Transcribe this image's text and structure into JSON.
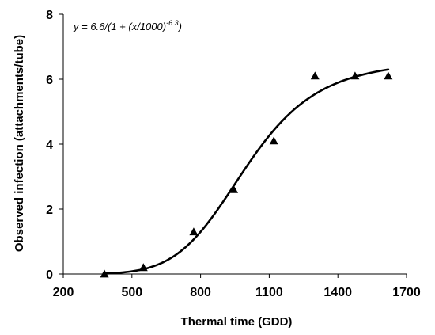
{
  "chart_data": {
    "type": "scatter",
    "xlabel": "Thermal time (GDD)",
    "ylabel": "Observed infection (attachments/tube)",
    "xlim": [
      200,
      1700
    ],
    "ylim": [
      0,
      8
    ],
    "x_ticks": [
      200,
      500,
      800,
      1100,
      1400,
      1700
    ],
    "y_ticks": [
      0,
      2,
      4,
      6,
      8
    ],
    "grid": false,
    "legend": "none",
    "marker": "triangle",
    "color": "#000000",
    "equation": {
      "prefix": "y = 6.6/(1 + (x/1000)",
      "exponent": "-6.3",
      "suffix": ")"
    },
    "series": [
      {
        "points": [
          {
            "x": 380,
            "y": 0.0
          },
          {
            "x": 550,
            "y": 0.2
          },
          {
            "x": 770,
            "y": 1.3
          },
          {
            "x": 945,
            "y": 2.6
          },
          {
            "x": 1120,
            "y": 4.1
          },
          {
            "x": 1300,
            "y": 6.1
          },
          {
            "x": 1475,
            "y": 6.1
          },
          {
            "x": 1620,
            "y": 6.1
          }
        ]
      }
    ],
    "fit": {
      "type": "log-logistic",
      "a": 6.6,
      "b": 1000,
      "c": -6.3,
      "x_range": [
        380,
        1620
      ]
    }
  }
}
